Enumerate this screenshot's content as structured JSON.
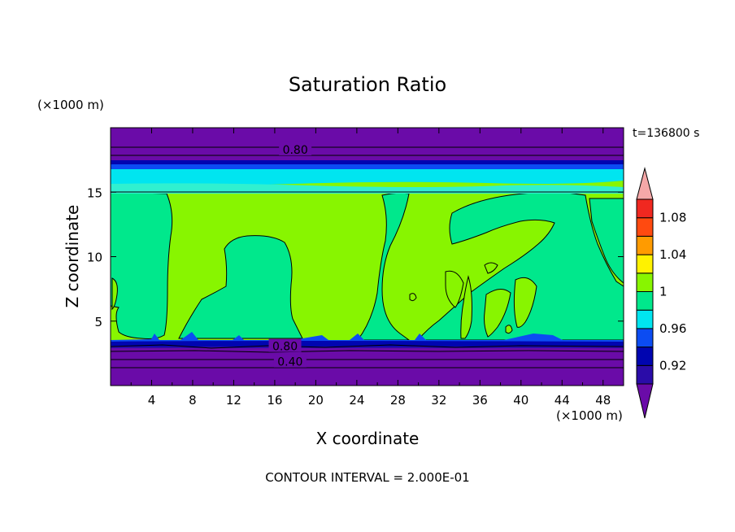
{
  "chart_data": {
    "type": "heatmap",
    "title": "Saturation Ratio",
    "xlabel": "X coordinate",
    "ylabel": "Z coordinate",
    "x_unit": "(×1000 m)",
    "y_unit": "(×1000 m)",
    "time_label": "t=136800 s",
    "footer": "CONTOUR INTERVAL = 2.000E-01",
    "xlim": [
      0,
      50
    ],
    "ylim": [
      0,
      20
    ],
    "x_ticks": [
      4,
      8,
      12,
      16,
      20,
      24,
      28,
      32,
      36,
      40,
      44,
      48
    ],
    "y_ticks": [
      5,
      10,
      15
    ],
    "grid": false,
    "contour_lines": [
      {
        "label": "0.80",
        "z": 18.3,
        "x": 18.0
      },
      {
        "label": "0.80",
        "z": 3.05,
        "x": 17.0
      },
      {
        "label": "0.40",
        "z": 1.85,
        "x": 17.5
      }
    ],
    "colorbar": {
      "boundaries": [
        0.9,
        0.92,
        0.94,
        0.96,
        0.98,
        1.0,
        1.02,
        1.04,
        1.06,
        1.08,
        1.1
      ],
      "colors": [
        "#6a0ba8",
        "#2a0ca8",
        "#0005b0",
        "#0c4cf2",
        "#00e5f0",
        "#00e88c",
        "#88f500",
        "#fff200",
        "#ff9b00",
        "#ff4a10",
        "#f02820",
        "#f5a8a8"
      ],
      "tick_labels": [
        "0.92",
        "0.96",
        "1",
        "1.04",
        "1.08"
      ],
      "tick_values": [
        0.92,
        0.96,
        1.0,
        1.04,
        1.08
      ]
    }
  },
  "colors": {
    "purple": "#6a0ba8",
    "navy": "#0005b0",
    "blue": "#0c4cf2",
    "cyan": "#00e5f0",
    "teal": "#00e88c",
    "lime": "#88f500",
    "light_cyan": "#30f0d0"
  }
}
